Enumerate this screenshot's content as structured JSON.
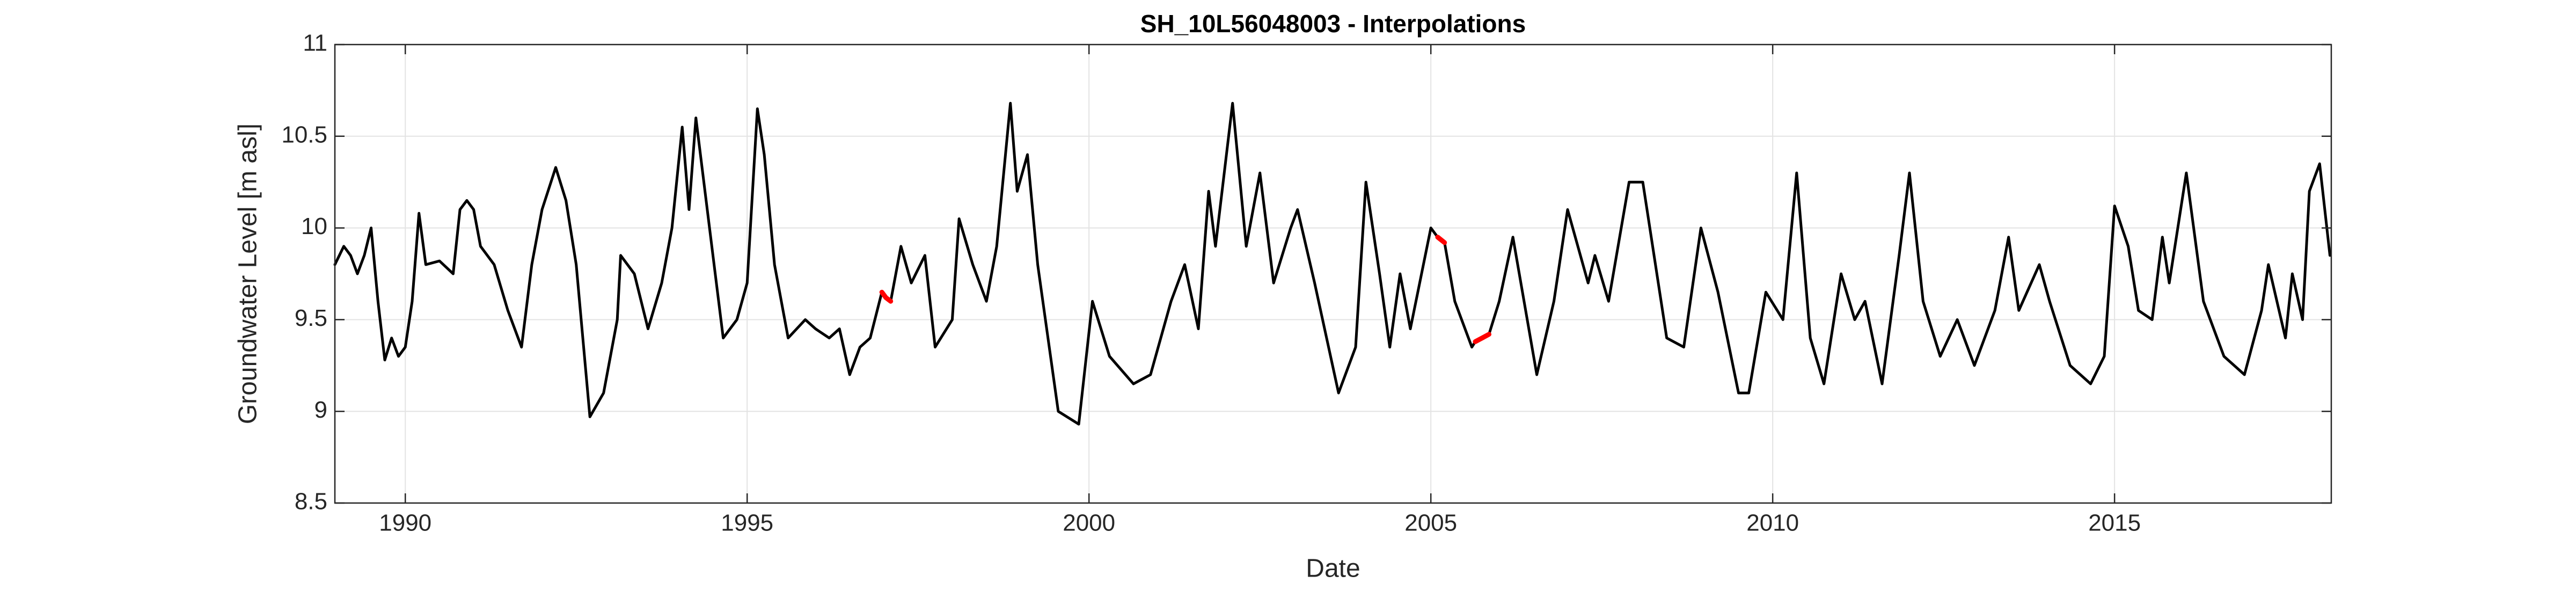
{
  "chart_data": {
    "type": "line",
    "title": "SH_10L56048003 - Interpolations",
    "x_label": "Date",
    "y_label": "Groundwater Level [m asl]",
    "xlim": [
      1988.97,
      2018.17
    ],
    "xticks": [
      1990,
      1995,
      2000,
      2005,
      2010,
      2015
    ],
    "ylim": [
      8.5,
      11
    ],
    "yticks": [
      8.5,
      9,
      9.5,
      10,
      10.5,
      11
    ],
    "grid": true,
    "series": [
      {
        "color": "#000000",
        "x": [
          1988.97,
          1989.1,
          1989.2,
          1989.3,
          1989.4,
          1989.5,
          1989.6,
          1989.7,
          1989.8,
          1989.9,
          1990.0,
          1990.1,
          1990.2,
          1990.3,
          1990.5,
          1990.7,
          1990.8,
          1990.9,
          1991.0,
          1991.1,
          1991.3,
          1991.5,
          1991.7,
          1991.85,
          1992.0,
          1992.2,
          1992.35,
          1992.5,
          1992.7,
          1992.9,
          1993.1,
          1993.15,
          1993.35,
          1993.55,
          1993.75,
          1993.9,
          1994.05,
          1994.15,
          1994.25,
          1994.45,
          1994.65,
          1994.85,
          1995.0,
          1995.15,
          1995.25,
          1995.4,
          1995.6,
          1995.85,
          1996.0,
          1996.2,
          1996.35,
          1996.5,
          1996.65,
          1996.8,
          1996.97,
          1997.1,
          1997.25,
          1997.4,
          1997.6,
          1997.75,
          1998.0,
          1998.1,
          1998.3,
          1998.5,
          1998.65,
          1998.85,
          1998.95,
          1999.1,
          1999.25,
          1999.55,
          1999.85,
          2000.05,
          2000.3,
          2000.65,
          2000.9,
          2001.2,
          2001.4,
          2001.6,
          2001.75,
          2001.85,
          2002.1,
          2002.3,
          2002.5,
          2002.7,
          2002.95,
          2003.05,
          2003.3,
          2003.65,
          2003.9,
          2004.05,
          2004.25,
          2004.4,
          2004.55,
          2004.7,
          2005.0,
          2005.1,
          2005.2,
          2005.35,
          2005.6,
          2005.65,
          2005.85,
          2006.0,
          2006.2,
          2006.55,
          2006.8,
          2007.0,
          2007.3,
          2007.4,
          2007.6,
          2007.9,
          2008.1,
          2008.45,
          2008.7,
          2008.95,
          2009.2,
          2009.5,
          2009.65,
          2009.9,
          2010.15,
          2010.35,
          2010.55,
          2010.75,
          2011.0,
          2011.2,
          2011.35,
          2011.6,
          2011.85,
          2012.0,
          2012.2,
          2012.45,
          2012.7,
          2012.95,
          2013.25,
          2013.45,
          2013.6,
          2013.9,
          2014.05,
          2014.35,
          2014.65,
          2014.85,
          2015.0,
          2015.2,
          2015.35,
          2015.55,
          2015.7,
          2015.8,
          2016.05,
          2016.3,
          2016.6,
          2016.9,
          2017.15,
          2017.25,
          2017.5,
          2017.6,
          2017.75,
          2017.85,
          2018.0,
          2018.15
        ],
        "values": [
          9.8,
          9.9,
          9.85,
          9.75,
          9.85,
          10.0,
          9.6,
          9.28,
          9.4,
          9.3,
          9.35,
          9.6,
          10.08,
          9.8,
          9.82,
          9.75,
          10.1,
          10.15,
          10.1,
          9.9,
          9.8,
          9.55,
          9.35,
          9.8,
          10.1,
          10.33,
          10.15,
          9.8,
          8.97,
          9.1,
          9.5,
          9.85,
          9.75,
          9.45,
          9.7,
          10.0,
          10.55,
          10.1,
          10.6,
          10.0,
          9.4,
          9.5,
          9.7,
          10.65,
          10.4,
          9.8,
          9.4,
          9.5,
          9.45,
          9.4,
          9.45,
          9.2,
          9.35,
          9.4,
          9.65,
          9.6,
          9.9,
          9.7,
          9.85,
          9.35,
          9.5,
          10.05,
          9.8,
          9.6,
          9.9,
          10.68,
          10.2,
          10.4,
          9.8,
          9.0,
          8.93,
          9.6,
          9.3,
          9.15,
          9.2,
          9.6,
          9.8,
          9.45,
          10.2,
          9.9,
          10.68,
          9.9,
          10.3,
          9.7,
          10.0,
          10.1,
          9.7,
          9.1,
          9.35,
          10.25,
          9.75,
          9.35,
          9.75,
          9.45,
          10.0,
          9.95,
          9.92,
          9.6,
          9.35,
          9.38,
          9.42,
          9.6,
          9.95,
          9.2,
          9.6,
          10.1,
          9.7,
          9.85,
          9.6,
          10.25,
          10.25,
          9.4,
          9.35,
          10.0,
          9.65,
          9.1,
          9.1,
          9.65,
          9.5,
          10.3,
          9.4,
          9.15,
          9.75,
          9.5,
          9.6,
          9.15,
          9.85,
          10.3,
          9.6,
          9.3,
          9.5,
          9.25,
          9.55,
          9.95,
          9.55,
          9.8,
          9.6,
          9.25,
          9.15,
          9.3,
          10.12,
          9.9,
          9.55,
          9.5,
          9.95,
          9.7,
          10.3,
          9.6,
          9.3,
          9.2,
          9.55,
          9.8,
          9.4,
          9.75,
          9.5,
          10.2,
          10.35,
          9.85
        ]
      },
      {
        "color": "#ff0000",
        "x": [
          1996.97,
          1997.03,
          1997.1
        ],
        "values": [
          9.65,
          9.62,
          9.6
        ]
      },
      {
        "color": "#ff0000",
        "x": [
          2005.1,
          2005.2
        ],
        "values": [
          9.95,
          9.92
        ]
      },
      {
        "color": "#ff0000",
        "x": [
          2005.65,
          2005.75,
          2005.85
        ],
        "values": [
          9.38,
          9.4,
          9.42
        ]
      }
    ]
  }
}
